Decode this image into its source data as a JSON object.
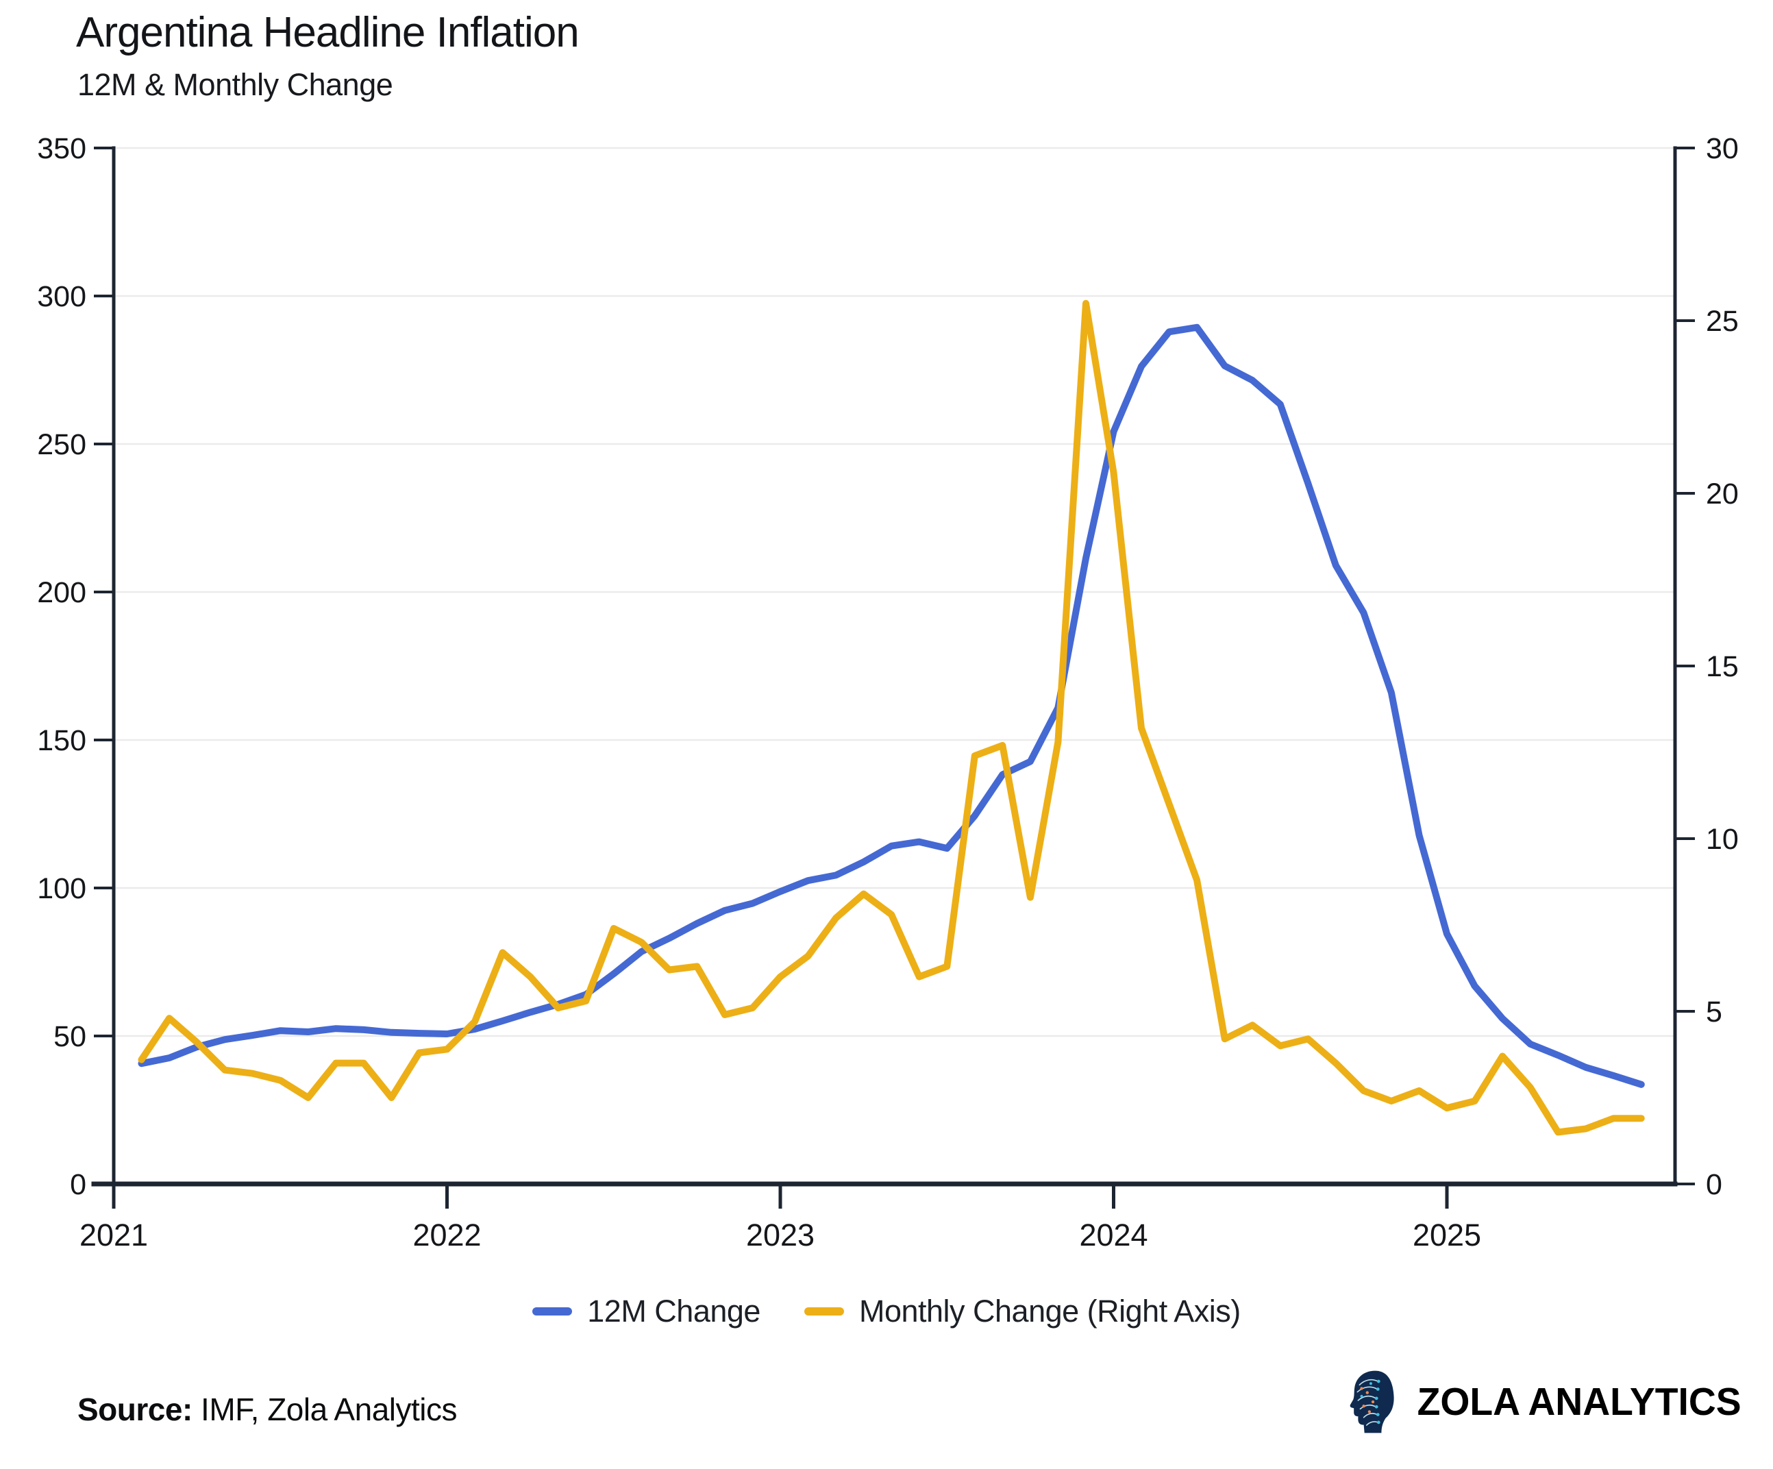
{
  "header": {
    "title": "Argentina Headline Inflation",
    "subtitle": "12M & Monthly Change"
  },
  "chart_data": {
    "type": "line",
    "title": "Argentina Headline Inflation",
    "subtitle": "12M & Monthly Change",
    "grid": "horizontal",
    "legend_position": "bottom-center",
    "x_axis": {
      "tick_labels": [
        "2021",
        "2022",
        "2023",
        "2024",
        "2025"
      ],
      "range_years": [
        2021,
        2025.72
      ]
    },
    "left_axis": {
      "ticks": [
        0,
        50,
        100,
        150,
        200,
        250,
        300,
        350
      ],
      "range": [
        0,
        350
      ]
    },
    "right_axis": {
      "ticks": [
        0,
        5,
        10,
        15,
        20,
        25,
        30
      ],
      "range": [
        0,
        30
      ]
    },
    "months": [
      "2021-02",
      "2021-03",
      "2021-04",
      "2021-05",
      "2021-06",
      "2021-07",
      "2021-08",
      "2021-09",
      "2021-10",
      "2021-11",
      "2021-12",
      "2022-01",
      "2022-02",
      "2022-03",
      "2022-04",
      "2022-05",
      "2022-06",
      "2022-07",
      "2022-08",
      "2022-09",
      "2022-10",
      "2022-11",
      "2022-12",
      "2023-01",
      "2023-02",
      "2023-03",
      "2023-04",
      "2023-05",
      "2023-06",
      "2023-07",
      "2023-08",
      "2023-09",
      "2023-10",
      "2023-11",
      "2023-12",
      "2024-01",
      "2024-02",
      "2024-03",
      "2024-04",
      "2024-05",
      "2024-06",
      "2024-07",
      "2024-08",
      "2024-09",
      "2024-10",
      "2024-11",
      "2024-12",
      "2025-01",
      "2025-02",
      "2025-03",
      "2025-04",
      "2025-05",
      "2025-06",
      "2025-07",
      "2025-08"
    ],
    "series": [
      {
        "name": "12M Change",
        "axis": "left",
        "color": "#4569d3",
        "values": [
          40.7,
          42.6,
          46.3,
          48.8,
          50.2,
          51.8,
          51.4,
          52.5,
          52.1,
          51.2,
          50.9,
          50.7,
          52.3,
          55.1,
          58.0,
          60.7,
          64.0,
          71.0,
          78.5,
          83.0,
          88.0,
          92.4,
          94.8,
          98.8,
          102.5,
          104.3,
          108.8,
          114.2,
          115.6,
          113.4,
          124.4,
          138.3,
          142.7,
          160.9,
          211.4,
          254.2,
          276.2,
          287.9,
          289.4,
          276.4,
          271.5,
          263.4,
          236.7,
          209.0,
          193.0,
          166.0,
          117.8,
          84.5,
          66.9,
          55.9,
          47.3,
          43.5,
          39.4,
          36.6,
          33.6
        ]
      },
      {
        "name": "Monthly Change (Right Axis)",
        "axis": "right",
        "color": "#edaf16",
        "values": [
          3.6,
          4.8,
          4.1,
          3.3,
          3.2,
          3.0,
          2.5,
          3.5,
          3.5,
          2.5,
          3.8,
          3.9,
          4.7,
          6.7,
          6.0,
          5.1,
          5.3,
          7.4,
          7.0,
          6.2,
          6.3,
          4.9,
          5.1,
          6.0,
          6.6,
          7.7,
          8.4,
          7.8,
          6.0,
          6.3,
          12.4,
          12.7,
          8.3,
          12.8,
          25.5,
          20.6,
          13.2,
          11.0,
          8.8,
          4.2,
          4.6,
          4.0,
          4.2,
          3.5,
          2.7,
          2.4,
          2.7,
          2.2,
          2.4,
          3.7,
          2.8,
          1.5,
          1.6,
          1.9,
          1.9
        ]
      }
    ],
    "colors": {
      "axis": "#1d2531",
      "grid": "#ebebeb",
      "tick_text": "#14161a"
    }
  },
  "legend": {
    "items": [
      {
        "label": "12M Change",
        "color": "#4569d3"
      },
      {
        "label": "Monthly Change (Right Axis)",
        "color": "#edaf16"
      }
    ]
  },
  "footer": {
    "source_label": "Source:",
    "source_value": "IMF, Zola Analytics",
    "brand": "ZOLA ANALYTICS",
    "logo_icon": "circuit-head-icon"
  }
}
